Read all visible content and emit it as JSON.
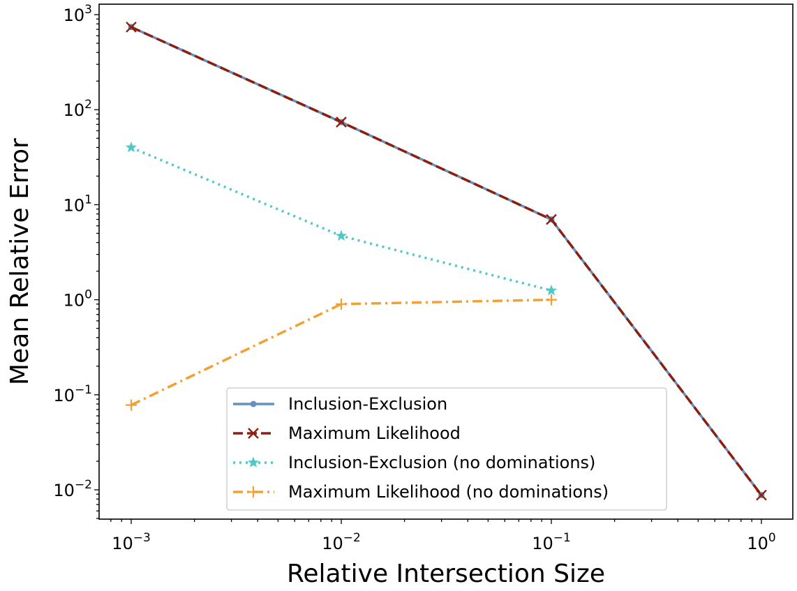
{
  "chart_data": {
    "type": "line",
    "title": "",
    "xlabel": "Relative Intersection Size",
    "ylabel": "Mean Relative Error",
    "xscale": "log",
    "yscale": "log",
    "xlim": [
      0.0007,
      1.4
    ],
    "ylim": [
      0.005,
      1000
    ],
    "x_ticks": [
      {
        "value": 0.001,
        "base": "10",
        "exp": "−3"
      },
      {
        "value": 0.01,
        "base": "10",
        "exp": "−2"
      },
      {
        "value": 0.1,
        "base": "10",
        "exp": "−1"
      },
      {
        "value": 1,
        "base": "10",
        "exp": "0"
      }
    ],
    "y_ticks": [
      {
        "value": 0.01,
        "base": "10",
        "exp": "−2"
      },
      {
        "value": 0.1,
        "base": "10",
        "exp": "−1"
      },
      {
        "value": 1,
        "base": "10",
        "exp": "0"
      },
      {
        "value": 10,
        "base": "10",
        "exp": "1"
      },
      {
        "value": 100,
        "base": "10",
        "exp": "2"
      },
      {
        "value": 1000,
        "base": "10",
        "exp": "3"
      }
    ],
    "grid": false,
    "legend_position": "lower-center",
    "series": [
      {
        "name": "Inclusion-Exclusion",
        "color": "#6391c1",
        "line_style": "solid",
        "marker": "dot",
        "x": [
          0.001,
          0.01,
          0.1,
          1
        ],
        "y": [
          740,
          74,
          7.0,
          0.0088
        ]
      },
      {
        "name": "Maximum Likelihood",
        "color": "#8b2011",
        "line_style": "dashed",
        "marker": "x",
        "x": [
          0.001,
          0.01,
          0.1,
          1
        ],
        "y": [
          740,
          74,
          7.0,
          0.0088
        ]
      },
      {
        "name": "Inclusion-Exclusion (no dominations)",
        "color": "#4fc8c8",
        "line_style": "dotted",
        "marker": "star",
        "x": [
          0.001,
          0.01,
          0.1
        ],
        "y": [
          40,
          4.7,
          1.25
        ]
      },
      {
        "name": "Maximum Likelihood (no dominations)",
        "color": "#f3a033",
        "line_style": "dashdot",
        "marker": "plus",
        "x": [
          0.001,
          0.01,
          0.1
        ],
        "y": [
          0.078,
          0.9,
          1.0
        ]
      }
    ]
  }
}
